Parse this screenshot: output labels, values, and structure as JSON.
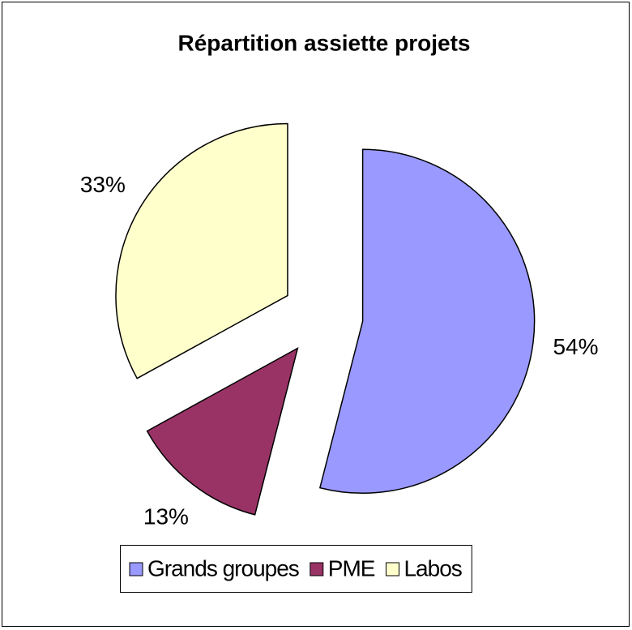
{
  "chart_data": {
    "type": "pie",
    "title": "Répartition assiette projets",
    "categories": [
      "Grands groupes",
      "PME",
      "Labos"
    ],
    "values": [
      54,
      13,
      33
    ],
    "value_labels": [
      "54%",
      "13%",
      "33%"
    ],
    "colors": [
      "#9999ff",
      "#993366",
      "#ffffcc"
    ],
    "exploded": true,
    "legend": "bottom"
  }
}
